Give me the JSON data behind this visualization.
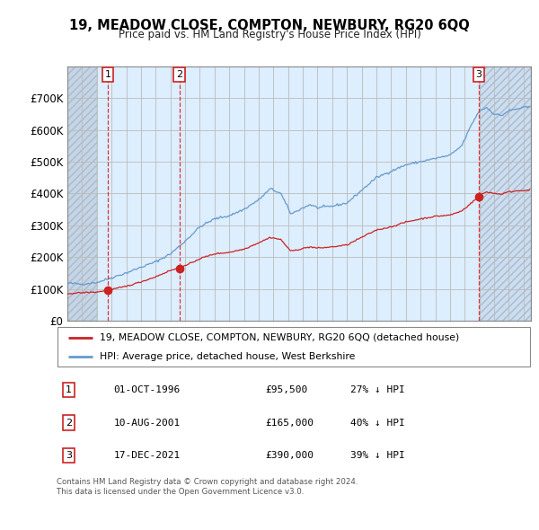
{
  "title": "19, MEADOW CLOSE, COMPTON, NEWBURY, RG20 6QQ",
  "subtitle": "Price paid vs. HM Land Registry's House Price Index (HPI)",
  "ylim": [
    0,
    800000
  ],
  "yticks": [
    0,
    100000,
    200000,
    300000,
    400000,
    500000,
    600000,
    700000
  ],
  "ytick_labels": [
    "£0",
    "£100K",
    "£200K",
    "£300K",
    "£400K",
    "£500K",
    "£600K",
    "£700K"
  ],
  "xlim_start": 1994.0,
  "xlim_end": 2025.5,
  "hpi_color": "#6699cc",
  "price_color": "#cc2222",
  "grid_color": "#bbbbbb",
  "sale_points": [
    {
      "year": 1996.75,
      "price": 95500,
      "label": "1"
    },
    {
      "year": 2001.61,
      "price": 165000,
      "label": "2"
    },
    {
      "year": 2021.96,
      "price": 390000,
      "label": "3"
    }
  ],
  "table_rows": [
    {
      "num": "1",
      "date": "01-OCT-1996",
      "price": "£95,500",
      "note": "27% ↓ HPI"
    },
    {
      "num": "2",
      "date": "10-AUG-2001",
      "price": "£165,000",
      "note": "40% ↓ HPI"
    },
    {
      "num": "3",
      "date": "17-DEC-2021",
      "price": "£390,000",
      "note": "39% ↓ HPI"
    }
  ],
  "legend_line1": "19, MEADOW CLOSE, COMPTON, NEWBURY, RG20 6QQ (detached house)",
  "legend_line2": "HPI: Average price, detached house, West Berkshire",
  "footnote": "Contains HM Land Registry data © Crown copyright and database right 2024.\nThis data is licensed under the Open Government Licence v3.0.",
  "background_chart": "#ddeeff",
  "hatch_left_end": 1996.0,
  "hatch_right_start": 2022.0
}
